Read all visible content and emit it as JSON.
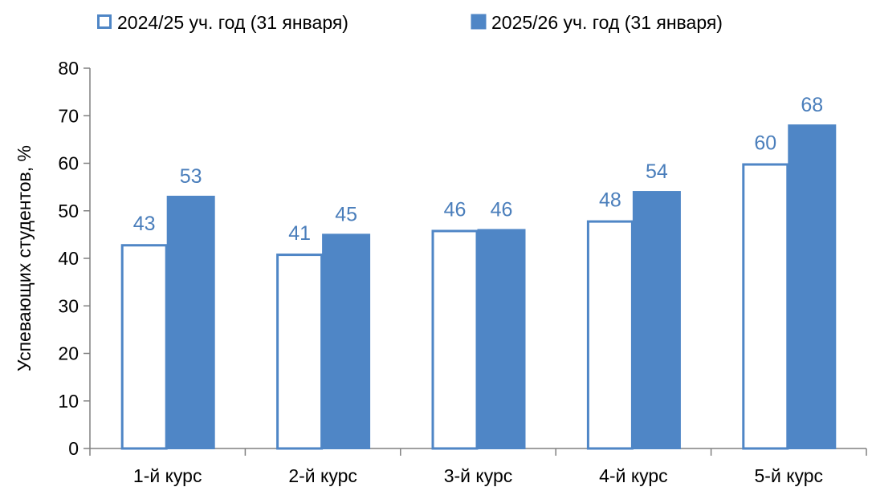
{
  "chart_data": {
    "type": "bar",
    "categories": [
      "1-й курс",
      "2-й курс",
      "3-й курс",
      "4-й курс",
      "5-й курс"
    ],
    "series": [
      {
        "name": "2024/25 уч. год (31 января)",
        "values": [
          43,
          41,
          46,
          48,
          60
        ],
        "style": "outline"
      },
      {
        "name": "2025/26 уч. год (31 января)",
        "values": [
          53,
          45,
          46,
          54,
          68
        ],
        "style": "filled"
      }
    ],
    "xlabel": "",
    "ylabel": "Успевающих студентов, %",
    "ylim": [
      0,
      80
    ],
    "yticks": [
      0,
      10,
      20,
      30,
      40,
      50,
      60,
      70,
      80
    ],
    "data_labels": true,
    "grid": false,
    "legend_position": "top",
    "colors": {
      "series_color": "#4F86C6",
      "outline_fill": "#FFFFFF",
      "label_color": "#4A7EBB",
      "axis_color": "#808080"
    }
  }
}
